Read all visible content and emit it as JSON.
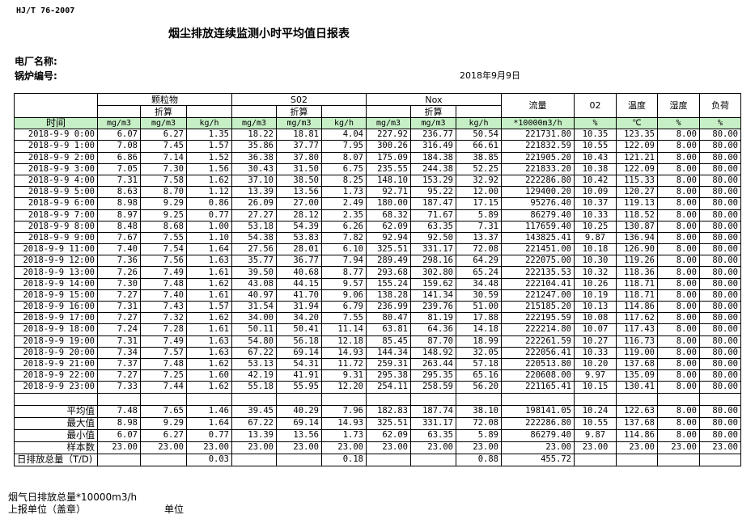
{
  "header": {
    "standard": "HJ/T  76-2007",
    "title": "烟尘排放连续监测小时平均值日报表",
    "plant_label": "电厂名称:",
    "boiler_label": "锅炉编号:",
    "date": "2018年9月9日"
  },
  "table": {
    "groups": [
      "颗粒物",
      "S02",
      "Nox"
    ],
    "converted_label": "折算",
    "single_headers": [
      "流量",
      "02",
      "温度",
      "湿度",
      "负荷"
    ],
    "time_label": "时间",
    "units": [
      "mg/m3",
      "mg/m3",
      "kg/h",
      "mg/m3",
      "mg/m3",
      "kg/h",
      "mg/m3",
      "mg/m3",
      "kg/h",
      "*10000m3/h",
      "%",
      "℃",
      "%",
      "%"
    ],
    "rows": [
      [
        "2018-9-9 0:00",
        "6.07",
        "6.27",
        "1.35",
        "18.22",
        "18.81",
        "4.04",
        "227.92",
        "236.77",
        "50.54",
        "221731.80",
        "10.35",
        "123.35",
        "8.00",
        "80.00"
      ],
      [
        "2018-9-9 1:00",
        "7.08",
        "7.45",
        "1.57",
        "35.86",
        "37.77",
        "7.95",
        "300.26",
        "316.49",
        "66.61",
        "221832.59",
        "10.55",
        "122.09",
        "8.00",
        "80.00"
      ],
      [
        "2018-9-9 2:00",
        "6.86",
        "7.14",
        "1.52",
        "36.38",
        "37.80",
        "8.07",
        "175.09",
        "184.38",
        "38.85",
        "221905.20",
        "10.43",
        "121.21",
        "8.00",
        "80.00"
      ],
      [
        "2018-9-9 3:00",
        "7.05",
        "7.30",
        "1.56",
        "30.43",
        "31.50",
        "6.75",
        "235.55",
        "244.38",
        "52.25",
        "221833.20",
        "10.38",
        "122.09",
        "8.00",
        "80.00"
      ],
      [
        "2018-9-9 4:00",
        "7.31",
        "7.58",
        "1.62",
        "37.10",
        "38.50",
        "8.25",
        "148.10",
        "153.29",
        "32.92",
        "222286.80",
        "10.42",
        "115.33",
        "8.00",
        "80.00"
      ],
      [
        "2018-9-9 5:00",
        "8.63",
        "8.70",
        "1.12",
        "13.39",
        "13.56",
        "1.73",
        "92.71",
        "95.22",
        "12.00",
        "129400.20",
        "10.09",
        "120.27",
        "8.00",
        "80.00"
      ],
      [
        "2018-9-9 6:00",
        "8.98",
        "9.29",
        "0.86",
        "26.09",
        "27.00",
        "2.49",
        "180.00",
        "187.47",
        "17.15",
        "95276.40",
        "10.37",
        "119.13",
        "8.00",
        "80.00"
      ],
      [
        "2018-9-9 7:00",
        "8.97",
        "9.25",
        "0.77",
        "27.27",
        "28.12",
        "2.35",
        "68.32",
        "71.67",
        "5.89",
        "86279.40",
        "10.33",
        "118.52",
        "8.00",
        "80.00"
      ],
      [
        "2018-9-9 8:00",
        "8.48",
        "8.68",
        "1.00",
        "53.18",
        "54.39",
        "6.26",
        "62.09",
        "63.35",
        "7.31",
        "117659.40",
        "10.25",
        "130.87",
        "8.00",
        "80.00"
      ],
      [
        "2018-9-9 9:00",
        "7.67",
        "7.55",
        "1.10",
        "54.38",
        "53.83",
        "7.82",
        "92.94",
        "92.50",
        "13.37",
        "143825.41",
        "9.87",
        "136.94",
        "8.00",
        "80.00"
      ],
      [
        "2018-9-9 11:00",
        "7.40",
        "7.54",
        "1.64",
        "27.56",
        "28.01",
        "6.10",
        "325.51",
        "331.17",
        "72.08",
        "221451.00",
        "10.18",
        "126.90",
        "8.00",
        "80.00"
      ],
      [
        "2018-9-9 12:00",
        "7.36",
        "7.56",
        "1.63",
        "35.77",
        "36.77",
        "7.94",
        "289.49",
        "298.16",
        "64.29",
        "222075.00",
        "10.30",
        "119.26",
        "8.00",
        "80.00"
      ],
      [
        "2018-9-9 13:00",
        "7.26",
        "7.49",
        "1.61",
        "39.50",
        "40.68",
        "8.77",
        "293.68",
        "302.80",
        "65.24",
        "222135.53",
        "10.32",
        "118.36",
        "8.00",
        "80.00"
      ],
      [
        "2018-9-9 14:00",
        "7.30",
        "7.48",
        "1.62",
        "43.08",
        "44.15",
        "9.57",
        "155.24",
        "159.62",
        "34.48",
        "222104.41",
        "10.26",
        "118.71",
        "8.00",
        "80.00"
      ],
      [
        "2018-9-9 15:00",
        "7.27",
        "7.40",
        "1.61",
        "40.97",
        "41.70",
        "9.06",
        "138.28",
        "141.34",
        "30.59",
        "221247.00",
        "10.19",
        "118.71",
        "8.00",
        "80.00"
      ],
      [
        "2018-9-9 16:00",
        "7.31",
        "7.43",
        "1.57",
        "31.54",
        "31.94",
        "6.79",
        "236.99",
        "239.76",
        "51.00",
        "215185.20",
        "10.13",
        "114.86",
        "8.00",
        "80.00"
      ],
      [
        "2018-9-9 17:00",
        "7.27",
        "7.32",
        "1.62",
        "34.00",
        "34.20",
        "7.55",
        "80.47",
        "81.19",
        "17.88",
        "222195.59",
        "10.08",
        "117.62",
        "8.00",
        "80.00"
      ],
      [
        "2018-9-9 18:00",
        "7.24",
        "7.28",
        "1.61",
        "50.11",
        "50.41",
        "11.14",
        "63.81",
        "64.36",
        "14.18",
        "222214.80",
        "10.07",
        "117.43",
        "8.00",
        "80.00"
      ],
      [
        "2018-9-9 19:00",
        "7.31",
        "7.49",
        "1.63",
        "54.80",
        "56.18",
        "12.18",
        "85.45",
        "87.70",
        "18.99",
        "222261.59",
        "10.27",
        "116.73",
        "8.00",
        "80.00"
      ],
      [
        "2018-9-9 20:00",
        "7.34",
        "7.57",
        "1.63",
        "67.22",
        "69.14",
        "14.93",
        "144.34",
        "148.92",
        "32.05",
        "222056.41",
        "10.33",
        "119.00",
        "8.00",
        "80.00"
      ],
      [
        "2018-9-9 21:00",
        "7.37",
        "7.48",
        "1.62",
        "53.13",
        "54.31",
        "11.72",
        "259.31",
        "263.44",
        "57.18",
        "220513.80",
        "10.20",
        "137.68",
        "8.00",
        "80.00"
      ],
      [
        "2018-9-9 22:00",
        "7.27",
        "7.25",
        "1.60",
        "42.19",
        "41.91",
        "9.31",
        "295.38",
        "295.35",
        "65.16",
        "220608.00",
        "9.97",
        "135.09",
        "8.00",
        "80.00"
      ],
      [
        "2018-9-9 23:00",
        "7.33",
        "7.44",
        "1.62",
        "55.18",
        "55.95",
        "12.20",
        "254.11",
        "258.59",
        "56.20",
        "221165.41",
        "10.15",
        "130.41",
        "8.00",
        "80.00"
      ]
    ],
    "stats": [
      [
        "平均值",
        "7.48",
        "7.65",
        "1.46",
        "39.45",
        "40.29",
        "7.96",
        "182.83",
        "187.74",
        "38.10",
        "198141.05",
        "10.24",
        "122.63",
        "8.00",
        "80.00"
      ],
      [
        "最大值",
        "8.98",
        "9.29",
        "1.64",
        "67.22",
        "69.14",
        "14.93",
        "325.51",
        "331.17",
        "72.08",
        "222286.80",
        "10.55",
        "137.68",
        "8.00",
        "80.00"
      ],
      [
        "最小值",
        "6.07",
        "6.27",
        "0.77",
        "13.39",
        "13.56",
        "1.73",
        "62.09",
        "63.35",
        "5.89",
        "86279.40",
        "9.87",
        "114.86",
        "8.00",
        "80.00"
      ],
      [
        "样本数",
        "23.00",
        "23.00",
        "23.00",
        "23.00",
        "23.00",
        "23.00",
        "23.00",
        "23.00",
        "23.00",
        "23.00",
        "23.00",
        "23.00",
        "23.00",
        "23.00"
      ]
    ],
    "daily_total": [
      "日排放总量（T/D)",
      "",
      "",
      "0.03",
      "",
      "",
      "0.18",
      "",
      "",
      "0.88",
      "455.72",
      "",
      "",
      "",
      ""
    ]
  },
  "footer": {
    "flue_gas_total": "烟气日排放总量*10000m3/h",
    "reporting_unit": "上报单位（盖章）",
    "unit": "单位"
  }
}
